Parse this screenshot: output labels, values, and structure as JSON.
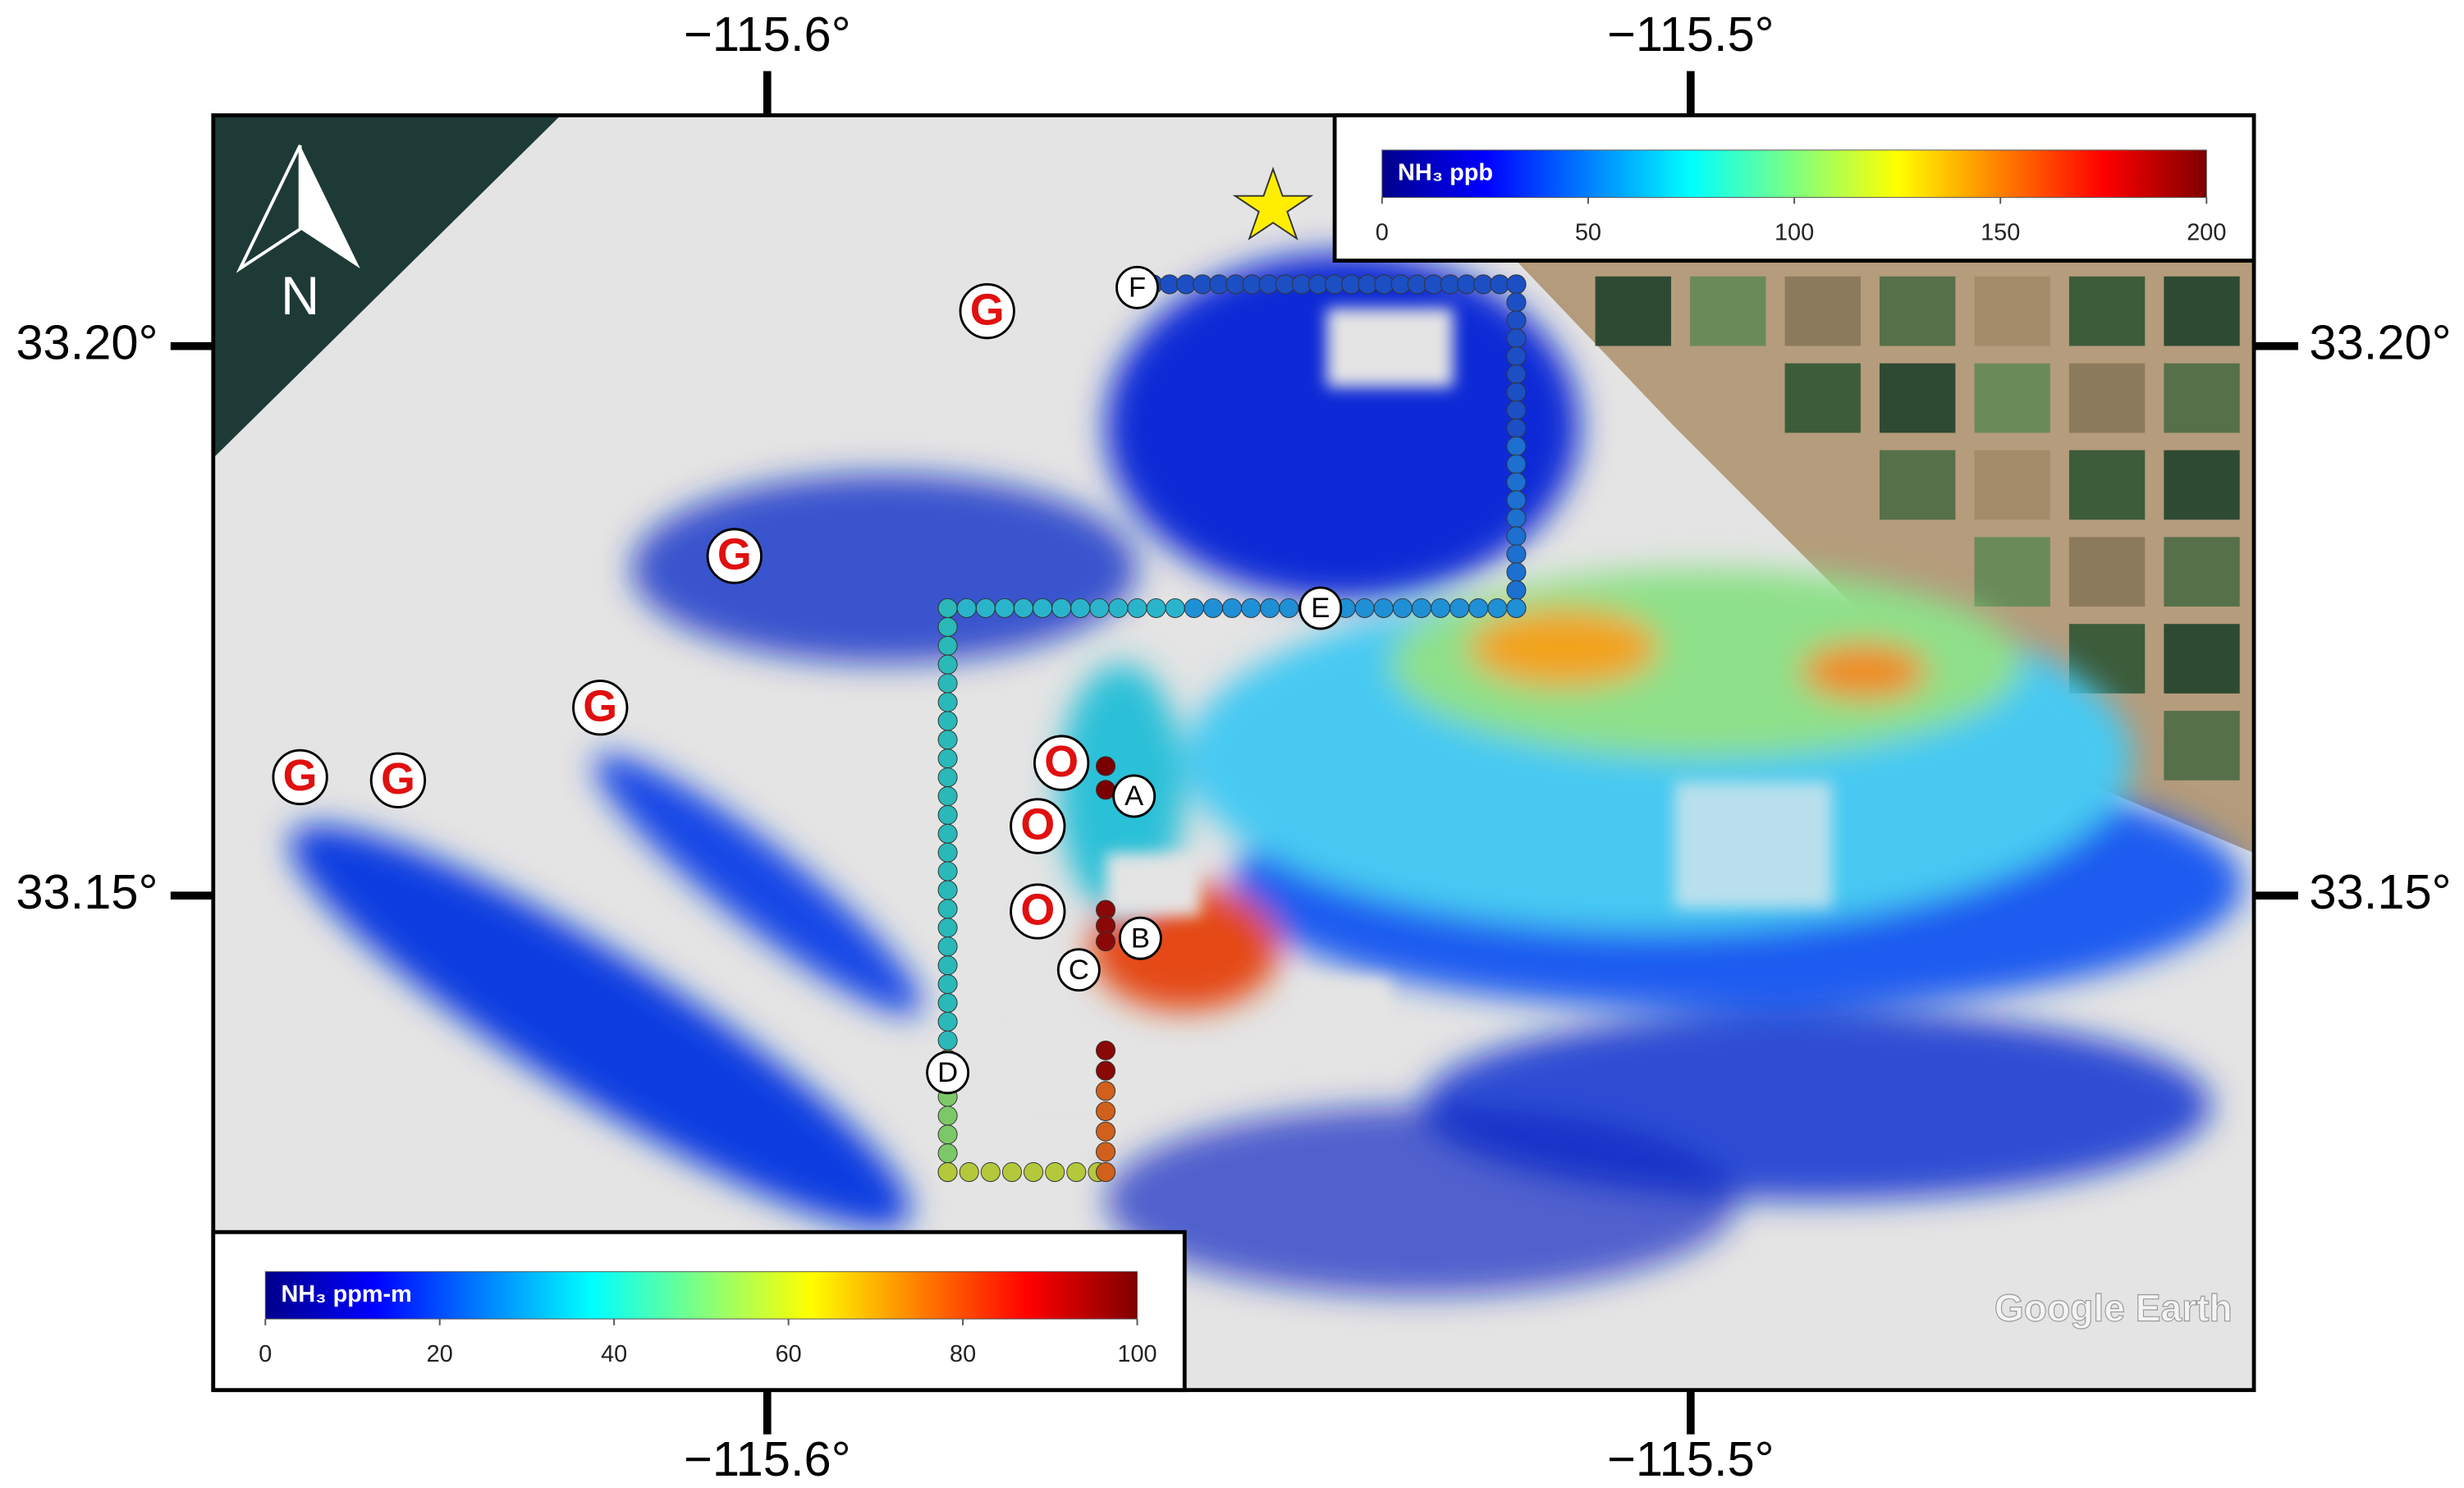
{
  "map": {
    "xlim": [
      -115.66,
      -115.439
    ],
    "ylim": [
      33.105,
      33.221
    ],
    "xticks": [
      {
        "value": -115.6,
        "label": "−115.6°"
      },
      {
        "value": -115.5,
        "label": "−115.5°"
      }
    ],
    "yticks": [
      {
        "value": 33.2,
        "label": "33.20°"
      },
      {
        "value": 33.15,
        "label": "33.15°"
      }
    ],
    "north": "N",
    "watermark": "Google Earth",
    "markers": [
      {
        "label": "G"
      },
      {
        "label": "G"
      },
      {
        "label": "G"
      },
      {
        "label": "G"
      },
      {
        "label": "G"
      },
      {
        "label": "O"
      },
      {
        "label": "O"
      },
      {
        "label": "O"
      },
      {
        "label": "F"
      },
      {
        "label": "E"
      },
      {
        "label": "A"
      },
      {
        "label": "B"
      },
      {
        "label": "C"
      },
      {
        "label": "D"
      }
    ]
  },
  "colorbars": [
    {
      "title": "NH₃ ppm-m",
      "lim": [
        0,
        100
      ],
      "ticks": [
        0,
        20,
        40,
        60,
        80,
        100
      ]
    },
    {
      "title": "NH₃ ppb",
      "lim": [
        0,
        200
      ],
      "ticks": [
        0,
        50,
        100,
        150,
        200
      ]
    }
  ]
}
